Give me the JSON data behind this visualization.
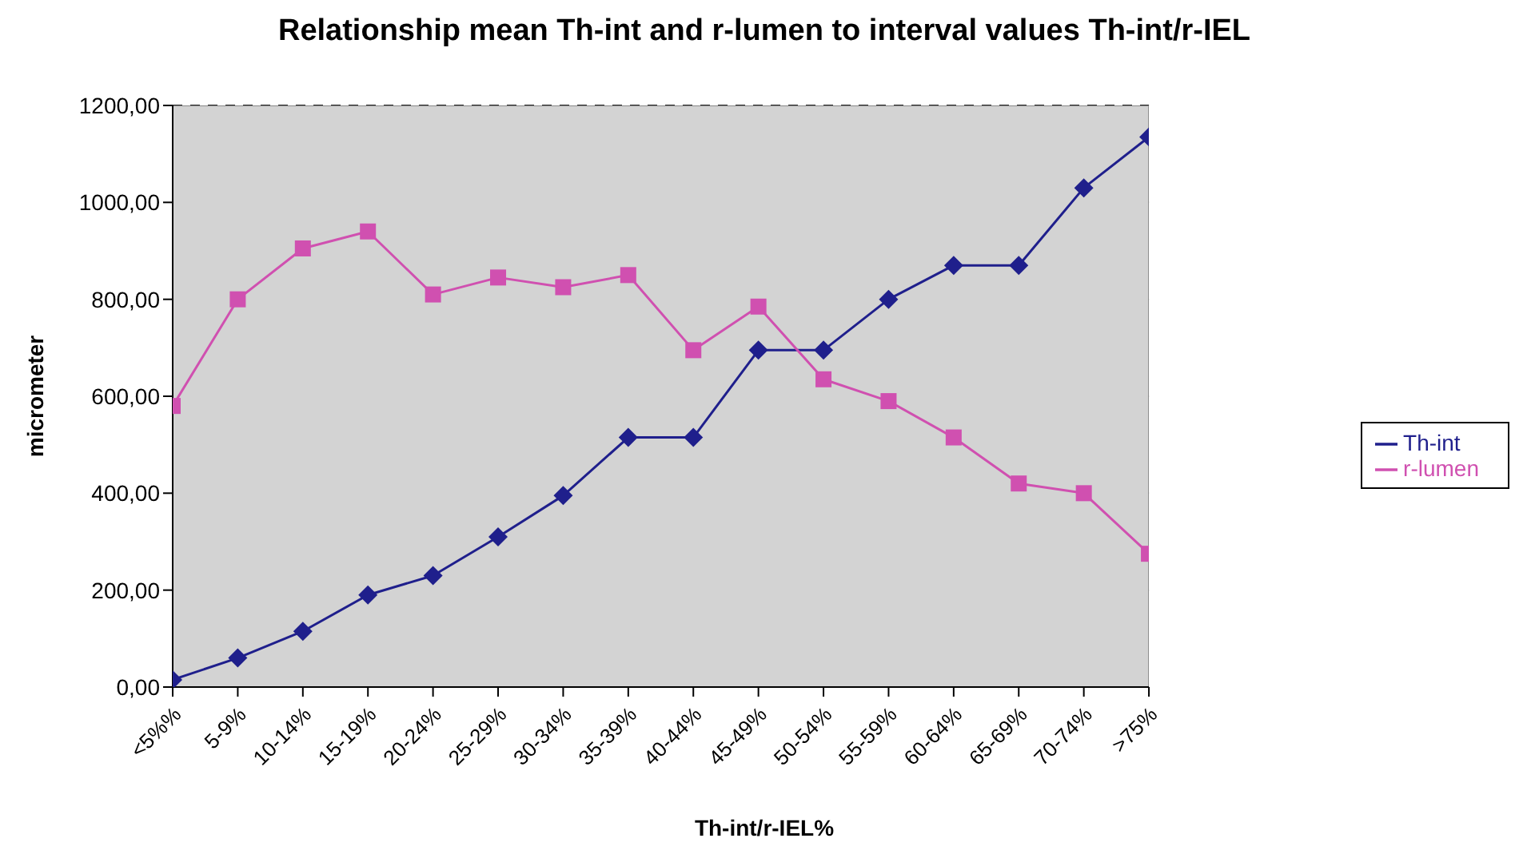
{
  "chart_data": {
    "type": "line",
    "title": "Relationship mean Th-int and r-lumen to interval values Th-int/r-IEL",
    "xlabel": "Th-int/r-IEL%",
    "ylabel": "micrometer",
    "categories": [
      "<5%%",
      "5-9%",
      "10-14%",
      "15-19%",
      "20-24%",
      "25-29%",
      "30-34%",
      "35-39%",
      "40-44%",
      "45-49%",
      "50-54%",
      "55-59%",
      "60-64%",
      "65-69%",
      "70-74%",
      ">75%"
    ],
    "series": [
      {
        "name": "Th-int",
        "color": "#1f1f8c",
        "marker": "diamond",
        "values": [
          15,
          60,
          115,
          190,
          230,
          310,
          395,
          515,
          515,
          695,
          695,
          800,
          870,
          870,
          1030,
          1135
        ]
      },
      {
        "name": "r-lumen",
        "color": "#d050b0",
        "marker": "square",
        "values": [
          580,
          800,
          905,
          940,
          810,
          845,
          825,
          850,
          695,
          785,
          635,
          590,
          515,
          420,
          400,
          275
        ]
      }
    ],
    "ylim": [
      0,
      1200
    ],
    "yticks": [
      {
        "value": 0,
        "label": "0,00"
      },
      {
        "value": 200,
        "label": "200,00"
      },
      {
        "value": 400,
        "label": "400,00"
      },
      {
        "value": 600,
        "label": "600,00"
      },
      {
        "value": 800,
        "label": "800,00"
      },
      {
        "value": 1000,
        "label": "1000,00"
      },
      {
        "value": 1200,
        "label": "1200,00"
      }
    ],
    "grid": "y",
    "legend": "right"
  }
}
